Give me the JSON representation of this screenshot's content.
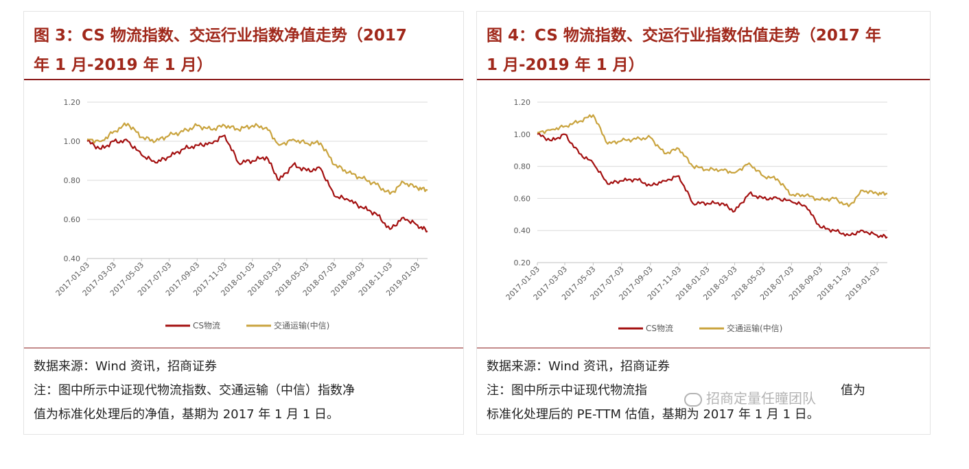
{
  "panels": [
    {
      "title_line1": "图 3：CS 物流指数、交运行业指数净值走势（2017",
      "title_line2": "年 1 月-2019 年 1 月）",
      "source": "数据来源：Wind 资讯，招商证券",
      "note_line1": "注：图中所示中证现代物流指数、交通运输（中信）指数净",
      "note_line2": "值为标准化处理后的净值，基期为 2017 年 1 月 1 日。"
    },
    {
      "title_line1": "图 4：CS 物流指数、交运行业指数估值走势（2017 年",
      "title_line2": "1 月-2019 年 1 月）",
      "source": "数据来源：Wind 资讯，招商证券",
      "note_line1": "注：图中所示中证现代物流指",
      "note_line1b": "值为",
      "note_line2": "标准化处理后的 PE-TTM 估值，基期为 2017 年 1 月 1 日。",
      "watermark": "招商定量任瞳团队"
    }
  ],
  "colors": {
    "cs_logistics": "#a30f0f",
    "transport": "#c9a33d",
    "title": "#a0281b",
    "grid": "#d9d9d9"
  },
  "chart_data": [
    {
      "type": "line",
      "x": [
        "2017-01-03",
        "2017-02-03",
        "2017-03-03",
        "2017-04-03",
        "2017-05-03",
        "2017-06-03",
        "2017-07-03",
        "2017-08-03",
        "2017-09-03",
        "2017-10-03",
        "2017-11-03",
        "2017-12-03",
        "2018-01-03",
        "2018-02-03",
        "2018-03-03",
        "2018-04-03",
        "2018-05-03",
        "2018-06-03",
        "2018-07-03",
        "2018-08-03",
        "2018-09-03",
        "2018-10-03",
        "2018-11-03",
        "2018-12-03",
        "2019-01-03",
        "2019-01-25"
      ],
      "x_tick_labels": [
        "2017-01-03",
        "2017-03-03",
        "2017-05-03",
        "2017-07-03",
        "2017-09-03",
        "2017-11-03",
        "2018-01-03",
        "2018-03-03",
        "2018-05-03",
        "2018-07-03",
        "2018-09-03",
        "2018-11-03",
        "2019-01-03"
      ],
      "y_ticks": [
        "0.40",
        "0.60",
        "0.80",
        "1.00",
        "1.20"
      ],
      "ylim": [
        0.4,
        1.2
      ],
      "series": [
        {
          "name": "CS物流",
          "values": [
            1.0,
            0.96,
            1.0,
            1.0,
            0.93,
            0.89,
            0.92,
            0.96,
            0.98,
            0.99,
            1.03,
            0.89,
            0.9,
            0.92,
            0.8,
            0.88,
            0.85,
            0.86,
            0.72,
            0.7,
            0.66,
            0.63,
            0.55,
            0.61,
            0.57,
            0.54
          ]
        },
        {
          "name": "交通运输(中信)",
          "values": [
            1.01,
            1.0,
            1.05,
            1.09,
            1.02,
            1.0,
            1.03,
            1.05,
            1.08,
            1.06,
            1.08,
            1.06,
            1.08,
            1.07,
            0.98,
            1.01,
            0.99,
            0.99,
            0.88,
            0.84,
            0.81,
            0.78,
            0.73,
            0.79,
            0.76,
            0.75
          ]
        }
      ]
    },
    {
      "type": "line",
      "x": [
        "2017-01-03",
        "2017-02-03",
        "2017-03-03",
        "2017-04-03",
        "2017-05-03",
        "2017-06-03",
        "2017-07-03",
        "2017-08-03",
        "2017-09-03",
        "2017-10-03",
        "2017-11-03",
        "2017-12-03",
        "2018-01-03",
        "2018-02-03",
        "2018-03-03",
        "2018-04-03",
        "2018-05-03",
        "2018-06-03",
        "2018-07-03",
        "2018-08-03",
        "2018-09-03",
        "2018-10-03",
        "2018-11-03",
        "2018-12-03",
        "2019-01-03",
        "2019-01-25"
      ],
      "x_tick_labels": [
        "2017-01-03",
        "2017-03-03",
        "2017-05-03",
        "2017-07-03",
        "2017-09-03",
        "2017-11-03",
        "2018-01-03",
        "2018-03-03",
        "2018-05-03",
        "2018-07-03",
        "2018-09-03",
        "2018-11-03",
        "2019-01-03"
      ],
      "y_ticks": [
        "0.20",
        "0.40",
        "0.60",
        "0.80",
        "1.00",
        "1.20"
      ],
      "ylim": [
        0.2,
        1.2
      ],
      "series": [
        {
          "name": "CS物流",
          "values": [
            1.0,
            0.96,
            1.0,
            0.88,
            0.82,
            0.69,
            0.71,
            0.72,
            0.68,
            0.71,
            0.74,
            0.57,
            0.57,
            0.57,
            0.52,
            0.63,
            0.6,
            0.6,
            0.58,
            0.55,
            0.42,
            0.4,
            0.37,
            0.4,
            0.37,
            0.36
          ]
        },
        {
          "name": "交通运输(中信)",
          "values": [
            1.01,
            1.03,
            1.05,
            1.08,
            1.12,
            0.94,
            0.96,
            0.97,
            0.98,
            0.88,
            0.91,
            0.8,
            0.78,
            0.78,
            0.76,
            0.82,
            0.74,
            0.72,
            0.62,
            0.62,
            0.59,
            0.6,
            0.55,
            0.65,
            0.63,
            0.63
          ]
        }
      ]
    }
  ]
}
